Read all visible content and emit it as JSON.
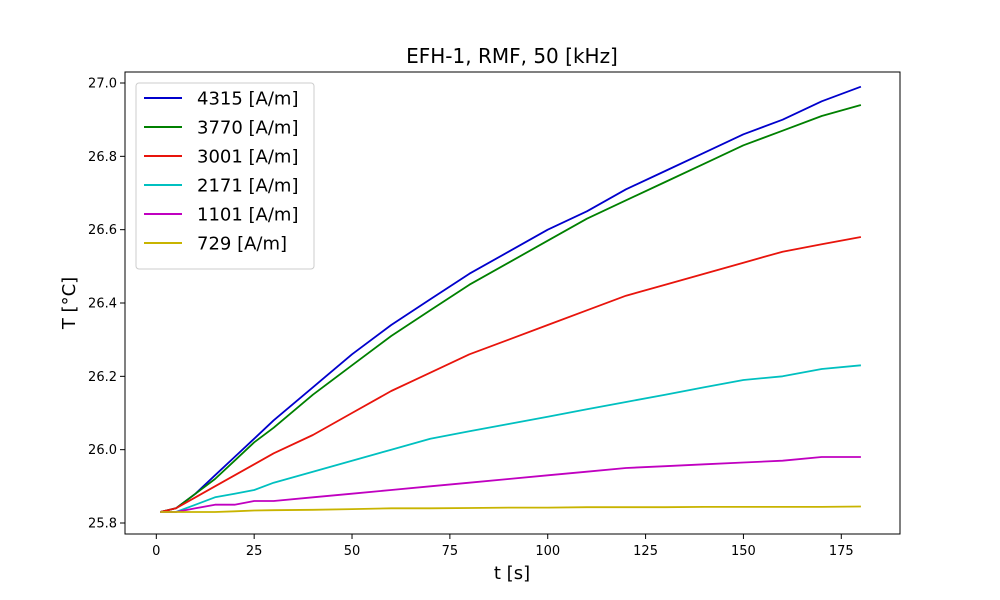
{
  "chart_data": {
    "type": "line",
    "title": "EFH-1, RMF, 50 [kHz]",
    "xlabel": "t [s]",
    "ylabel": "T [°C]",
    "xlim": [
      -8,
      190
    ],
    "ylim": [
      25.77,
      27.03
    ],
    "xticks": [
      0,
      25,
      50,
      75,
      100,
      125,
      150,
      175
    ],
    "yticks": [
      25.8,
      26.0,
      26.2,
      26.4,
      26.6,
      26.8,
      27.0
    ],
    "xtick_labels": [
      "0",
      "25",
      "50",
      "75",
      "100",
      "125",
      "150",
      "175"
    ],
    "ytick_labels": [
      "25.8",
      "26.0",
      "26.2",
      "26.4",
      "26.6",
      "26.8",
      "27.0"
    ],
    "grid": false,
    "legend_position": "top-left",
    "x": [
      1,
      5,
      10,
      15,
      20,
      25,
      30,
      40,
      50,
      60,
      70,
      80,
      90,
      100,
      110,
      120,
      130,
      140,
      150,
      160,
      170,
      180
    ],
    "series": [
      {
        "name": "4315 [A/m]",
        "color": "#0000cc",
        "values": [
          25.83,
          25.84,
          25.88,
          25.93,
          25.98,
          26.03,
          26.08,
          26.17,
          26.26,
          26.34,
          26.41,
          26.48,
          26.54,
          26.6,
          26.65,
          26.71,
          26.76,
          26.81,
          26.86,
          26.9,
          26.95,
          26.99
        ]
      },
      {
        "name": "3770 [A/m]",
        "color": "#008000",
        "values": [
          25.83,
          25.84,
          25.88,
          25.92,
          25.97,
          26.02,
          26.06,
          26.15,
          26.23,
          26.31,
          26.38,
          26.45,
          26.51,
          26.57,
          26.63,
          26.68,
          26.73,
          26.78,
          26.83,
          26.87,
          26.91,
          26.94
        ]
      },
      {
        "name": "3001 [A/m]",
        "color": "#e8140c",
        "values": [
          25.83,
          25.84,
          25.87,
          25.9,
          25.93,
          25.96,
          25.99,
          26.04,
          26.1,
          26.16,
          26.21,
          26.26,
          26.3,
          26.34,
          26.38,
          26.42,
          26.45,
          26.48,
          26.51,
          26.54,
          26.56,
          26.58
        ]
      },
      {
        "name": "2171 [A/m]",
        "color": "#00c0c0",
        "values": [
          25.83,
          25.83,
          25.85,
          25.87,
          25.88,
          25.89,
          25.91,
          25.94,
          25.97,
          26.0,
          26.03,
          26.05,
          26.07,
          26.09,
          26.11,
          26.13,
          26.15,
          26.17,
          26.19,
          26.2,
          26.22,
          26.23
        ]
      },
      {
        "name": "1101 [A/m]",
        "color": "#c000c0",
        "values": [
          25.83,
          25.83,
          25.84,
          25.85,
          25.85,
          25.86,
          25.86,
          25.87,
          25.88,
          25.89,
          25.9,
          25.91,
          25.92,
          25.93,
          25.94,
          25.95,
          25.955,
          25.96,
          25.965,
          25.97,
          25.98,
          25.98
        ]
      },
      {
        "name": "729 [A/m]",
        "color": "#c8b400",
        "values": [
          25.83,
          25.83,
          25.83,
          25.83,
          25.832,
          25.834,
          25.835,
          25.836,
          25.838,
          25.84,
          25.84,
          25.841,
          25.842,
          25.842,
          25.843,
          25.843,
          25.843,
          25.844,
          25.844,
          25.844,
          25.844,
          25.845
        ]
      }
    ]
  }
}
